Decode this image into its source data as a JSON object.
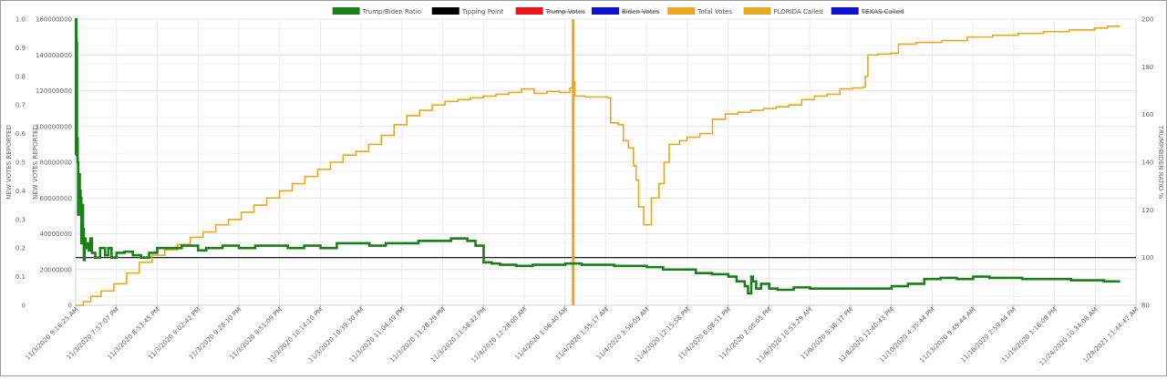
{
  "chart_data": {
    "type": "line",
    "title": "",
    "legend": {
      "placement": "top-center",
      "entries": [
        {
          "label": "Trump/Biden Ratio",
          "color": "#1a7f1a",
          "hidden": false
        },
        {
          "label": "Tipping Point",
          "color": "#000000",
          "hidden": false
        },
        {
          "label": "Trump Votes",
          "color": "#e8141a",
          "hidden": true
        },
        {
          "label": "Biden Votes",
          "color": "#1010d0",
          "hidden": true
        },
        {
          "label": "Total Votes",
          "color": "#e8a820",
          "hidden": false
        },
        {
          "label": "FLORIDA Called",
          "color": "#e8a820",
          "hidden": false
        },
        {
          "label": "TEXAS Called",
          "color": "#1010d0",
          "hidden": true
        }
      ]
    },
    "axes": {
      "y_left_outer": {
        "label": "NEW VOTES REPORTED",
        "min": 0,
        "max": 1.0,
        "ticks": [
          "0",
          "0.1",
          "0.2",
          "0.3",
          "0.4",
          "0.5",
          "0.6",
          "0.7",
          "0.8",
          "0.9",
          "1.0"
        ]
      },
      "y_left_inner": {
        "label": "NEW VOTES REPORTED",
        "min": 0,
        "max": 160000000,
        "ticks": [
          "0",
          "20000000",
          "40000000",
          "60000000",
          "80000000",
          "100000000",
          "120000000",
          "140000000",
          "160000000"
        ]
      },
      "y_right": {
        "label": "TRUMP/BIDEN RATIO %",
        "min": 80,
        "max": 200,
        "ticks": [
          "80",
          "100",
          "120",
          "140",
          "160",
          "180",
          "200"
        ]
      },
      "x": {
        "label": "",
        "ticks": [
          "11/3/2020 9:16:25 AM",
          "11/3/2020 7:57:07 PM",
          "11/3/2020 8:53:45 PM",
          "11/3/2020 9:02:42 PM",
          "11/3/2020 9:28:10 PM",
          "11/3/2020 9:51:09 PM",
          "11/3/2020 10:14:10 PM",
          "11/3/2020 10:39:30 PM",
          "11/3/2020 11:04:49 PM",
          "11/3/2020 11:28:29 PM",
          "11/3/2020 11:58:42 PM",
          "11/4/2020 12:28:00 AM",
          "11/4/2020 1:06:40 AM",
          "11/4/2020 1:55:17 AM",
          "11/4/2020 3:56:09 AM",
          "11/4/2020 12:15:58 PM",
          "11/4/2020 6:08:51 PM",
          "11/5/2020 2:05:05 PM",
          "11/6/2020 10:53:29 AM",
          "11/6/2020 5:36:37 PM",
          "11/8/2020 12:40:43 PM",
          "11/10/2020 4:35:44 PM",
          "11/13/2020 9:49:44 AM",
          "11/16/2020 2:59:44 PM",
          "11/19/2020 1:16:09 PM",
          "11/24/2020 10:34:08 AM",
          "1/29/2021 11:44:47 AM"
        ]
      }
    },
    "grid": true,
    "tipping_point_ratio": 100,
    "florida_called_index": 12.2,
    "series": [
      {
        "name": "Total Votes",
        "axis": "y_left_inner",
        "step": true,
        "values": [
          [
            0,
            0
          ],
          [
            0.3,
            2000000
          ],
          [
            0.6,
            5000000
          ],
          [
            1,
            8000000
          ],
          [
            1.5,
            12000000
          ],
          [
            2,
            18000000
          ],
          [
            2.5,
            24000000
          ],
          [
            3,
            28000000
          ],
          [
            3.5,
            31000000
          ],
          [
            4,
            34000000
          ],
          [
            4.5,
            38000000
          ],
          [
            5,
            41000000
          ],
          [
            5.5,
            45000000
          ],
          [
            6,
            48000000
          ],
          [
            6.5,
            52000000
          ],
          [
            7,
            56000000
          ],
          [
            7.5,
            60000000
          ],
          [
            8,
            64000000
          ],
          [
            8.5,
            68000000
          ],
          [
            9,
            72000000
          ],
          [
            9.5,
            76000000
          ],
          [
            10,
            80000000
          ],
          [
            10.5,
            84000000
          ],
          [
            11,
            86000000
          ],
          [
            11.5,
            90000000
          ],
          [
            12,
            95000000
          ],
          [
            12.5,
            101000000
          ],
          [
            13,
            106000000
          ],
          [
            13.5,
            109000000
          ],
          [
            14,
            112000000
          ],
          [
            14.5,
            114000000
          ],
          [
            15,
            115000000
          ],
          [
            15.5,
            116000000
          ],
          [
            16,
            117000000
          ],
          [
            16.5,
            118000000
          ],
          [
            17,
            119000000
          ],
          [
            17.5,
            121000000
          ],
          [
            18,
            118500000
          ],
          [
            18.5,
            119500000
          ],
          [
            19,
            119000000
          ],
          [
            19.4,
            121500000
          ],
          [
            19.5,
            125000000
          ],
          [
            19.6,
            117000000
          ],
          [
            20,
            116500000
          ],
          [
            20.5,
            116500000
          ],
          [
            20.9,
            116000000
          ],
          [
            21,
            102000000
          ],
          [
            21.3,
            101000000
          ],
          [
            21.5,
            92000000
          ],
          [
            21.7,
            88000000
          ],
          [
            21.9,
            78000000
          ],
          [
            22,
            70000000
          ],
          [
            22.1,
            55000000
          ],
          [
            22.3,
            45000000
          ],
          [
            22.6,
            60000000
          ],
          [
            22.9,
            68000000
          ],
          [
            23.1,
            80000000
          ],
          [
            23.3,
            90000000
          ],
          [
            23.7,
            92000000
          ],
          [
            24,
            94000000
          ],
          [
            24.5,
            96000000
          ],
          [
            25,
            104000000
          ],
          [
            25.5,
            107000000
          ],
          [
            26,
            108000000
          ],
          [
            26.5,
            109000000
          ],
          [
            27,
            110000000
          ],
          [
            27.5,
            111000000
          ],
          [
            28,
            112000000
          ],
          [
            28.5,
            115000000
          ],
          [
            29,
            117000000
          ],
          [
            29.5,
            118000000
          ],
          [
            30,
            121000000
          ],
          [
            30.5,
            121500000
          ],
          [
            30.9,
            122000000
          ],
          [
            31,
            128000000
          ],
          [
            31.1,
            140000000
          ],
          [
            31.5,
            140500000
          ],
          [
            32,
            141000000
          ],
          [
            32.3,
            146000000
          ],
          [
            33,
            147000000
          ],
          [
            34,
            148000000
          ],
          [
            35,
            150000000
          ],
          [
            36,
            151000000
          ],
          [
            37,
            152000000
          ],
          [
            38,
            153000000
          ],
          [
            39,
            154000000
          ],
          [
            40,
            155000000
          ],
          [
            40.5,
            156000000
          ],
          [
            41,
            156000000
          ]
        ]
      },
      {
        "name": "Trump/Biden Ratio",
        "axis": "y_right",
        "step": true,
        "values": [
          [
            0,
            143
          ],
          [
            0.02,
            200
          ],
          [
            0.05,
            190
          ],
          [
            0.08,
            150
          ],
          [
            0.12,
            140
          ],
          [
            0.15,
            118
          ],
          [
            0.2,
            135
          ],
          [
            0.25,
            128
          ],
          [
            0.3,
            125
          ],
          [
            0.35,
            106
          ],
          [
            0.4,
            122
          ],
          [
            0.45,
            112
          ],
          [
            0.5,
            99
          ],
          [
            0.55,
            108
          ],
          [
            0.6,
            104
          ],
          [
            0.7,
            106
          ],
          [
            0.8,
            103
          ],
          [
            0.9,
            108
          ],
          [
            1,
            102
          ],
          [
            1.2,
            100
          ],
          [
            1.5,
            104
          ],
          [
            1.8,
            101
          ],
          [
            2,
            104
          ],
          [
            2.2,
            100
          ],
          [
            2.5,
            102
          ],
          [
            3,
            102.5
          ],
          [
            3.5,
            101
          ],
          [
            4,
            100
          ],
          [
            4.5,
            102
          ],
          [
            5,
            104
          ],
          [
            5.5,
            104
          ],
          [
            6,
            104
          ],
          [
            6.5,
            105
          ],
          [
            7,
            105
          ],
          [
            7.5,
            103
          ],
          [
            8,
            104
          ],
          [
            9,
            105
          ],
          [
            10,
            104
          ],
          [
            11,
            105
          ],
          [
            12,
            105
          ],
          [
            13,
            104
          ],
          [
            14,
            105
          ],
          [
            15,
            104
          ],
          [
            16,
            106
          ],
          [
            17,
            106
          ],
          [
            18,
            105
          ],
          [
            19,
            106
          ],
          [
            20,
            106
          ],
          [
            21,
            107
          ],
          [
            22,
            107
          ],
          [
            23,
            108
          ],
          [
            24,
            107
          ],
          [
            24.5,
            105
          ],
          [
            25,
            98
          ],
          [
            25.5,
            97.5
          ],
          [
            26,
            97
          ],
          [
            27,
            96.5
          ],
          [
            28,
            97
          ],
          [
            29,
            97
          ],
          [
            30,
            97.5
          ],
          [
            31,
            97
          ],
          [
            32,
            97
          ],
          [
            33,
            96.5
          ],
          [
            34,
            96.5
          ],
          [
            35,
            96
          ],
          [
            36,
            95
          ],
          [
            37,
            95
          ],
          [
            38,
            93.5
          ],
          [
            39,
            93
          ],
          [
            40,
            92
          ],
          [
            40.5,
            90
          ],
          [
            41,
            88
          ],
          [
            41.2,
            85
          ],
          [
            41.4,
            92
          ],
          [
            41.5,
            90
          ],
          [
            41.7,
            87
          ],
          [
            42,
            89
          ],
          [
            42.5,
            87
          ],
          [
            43,
            86.5
          ],
          [
            44,
            87.5
          ],
          [
            45,
            87
          ],
          [
            46,
            87
          ],
          [
            47,
            87
          ],
          [
            48,
            87
          ],
          [
            49,
            87
          ],
          [
            50,
            88
          ],
          [
            51,
            89
          ],
          [
            52,
            91
          ],
          [
            53,
            91.5
          ],
          [
            54,
            91
          ],
          [
            55,
            92
          ],
          [
            56,
            91.5
          ],
          [
            57,
            91.5
          ],
          [
            58,
            91
          ],
          [
            59,
            91
          ],
          [
            60,
            91
          ],
          [
            61,
            90.5
          ],
          [
            62,
            90.5
          ],
          [
            63,
            90
          ],
          [
            64,
            90
          ]
        ]
      }
    ]
  }
}
